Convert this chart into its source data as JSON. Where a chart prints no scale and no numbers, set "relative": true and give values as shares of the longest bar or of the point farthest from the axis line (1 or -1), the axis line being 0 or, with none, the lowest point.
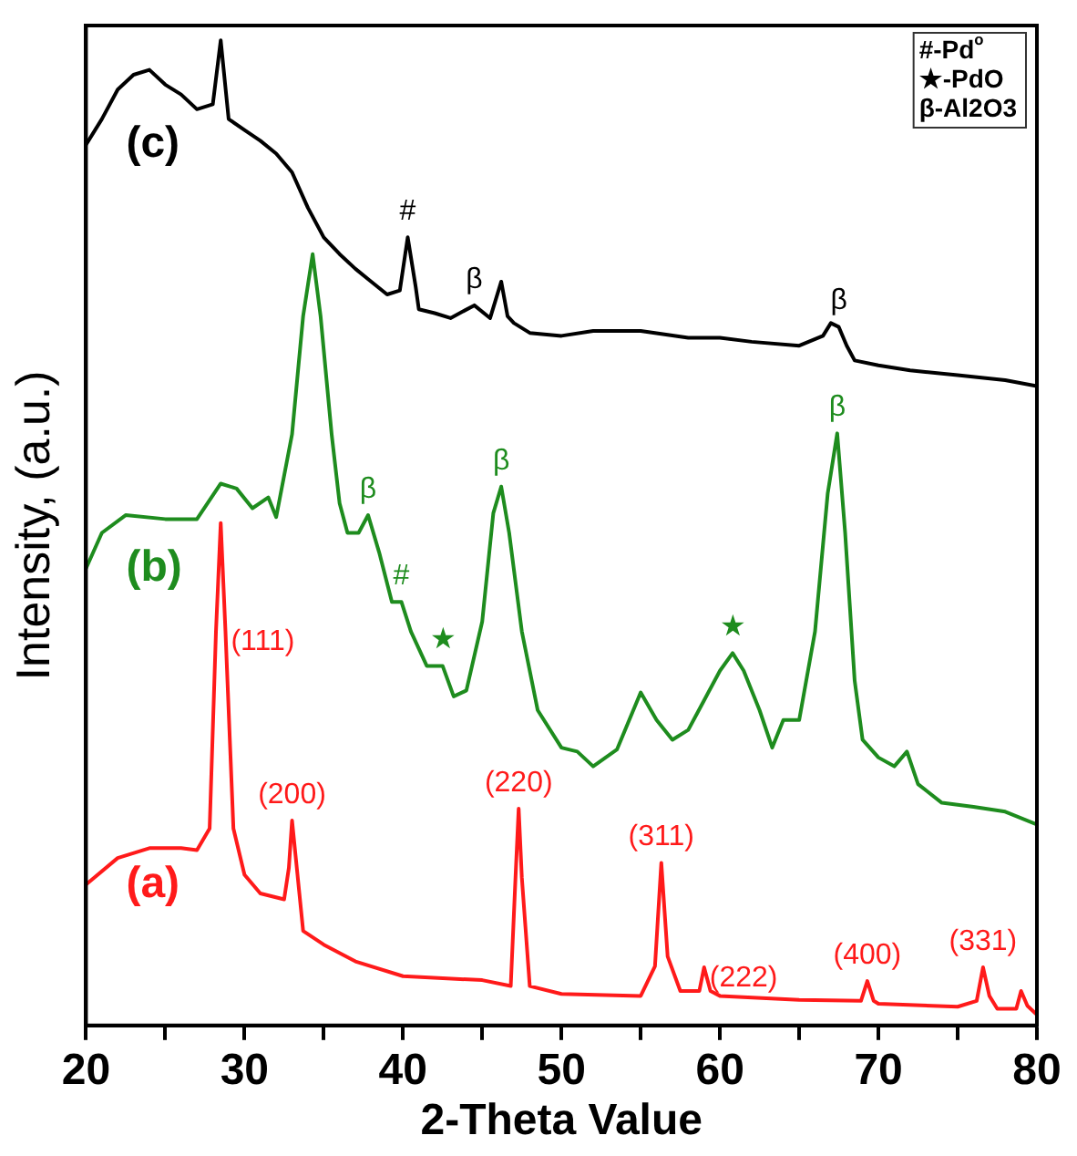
{
  "chart_data": {
    "type": "line",
    "relative": true,
    "xlabel": "2-Theta Value",
    "ylabel": "Intensity, (a.u.)",
    "xlim": [
      20,
      80
    ],
    "xticks": [
      20,
      {
        "value": 25,
        "label": null
      },
      30,
      {
        "value": 35,
        "label": null
      },
      40,
      {
        "value": 45,
        "label": null
      },
      50,
      {
        "value": 55,
        "label": null
      },
      60,
      {
        "value": 65,
        "label": null
      },
      70,
      {
        "value": 75,
        "label": null
      },
      80
    ],
    "grid": false,
    "legend": false,
    "marker": "none",
    "line_style": "solid",
    "series": [
      {
        "name": "(a)",
        "color": "#ff1a1a",
        "x": [
          20,
          22,
          24,
          26,
          27,
          27.8,
          28.2,
          28.5,
          28.8,
          29.3,
          30,
          31,
          32.5,
          32.8,
          33,
          33.3,
          33.7,
          35,
          37,
          40,
          45,
          46.8,
          47.1,
          47.3,
          47.5,
          48,
          50,
          55,
          55.9,
          56.3,
          56.7,
          57.5,
          58.7,
          59,
          59.4,
          60,
          65,
          68.9,
          69.3,
          69.7,
          70,
          75,
          76.2,
          76.6,
          77,
          77.5,
          78.7,
          79,
          79.4,
          80
        ],
        "values": [
          0.143,
          0.17,
          0.18,
          0.18,
          0.178,
          0.2,
          0.4,
          0.51,
          0.4,
          0.2,
          0.153,
          0.134,
          0.128,
          0.16,
          0.208,
          0.16,
          0.096,
          0.082,
          0.065,
          0.05,
          0.046,
          0.04,
          0.15,
          0.22,
          0.15,
          0.04,
          0.032,
          0.03,
          0.06,
          0.165,
          0.07,
          0.035,
          0.035,
          0.059,
          0.035,
          0.03,
          0.026,
          0.025,
          0.045,
          0.025,
          0.022,
          0.019,
          0.025,
          0.059,
          0.03,
          0.017,
          0.017,
          0.035,
          0.02,
          0.011
        ]
      },
      {
        "name": "(b)",
        "color": "#1e8c1e",
        "x": [
          20,
          21,
          22.5,
          25,
          27,
          28.5,
          29.5,
          30.5,
          31.5,
          32,
          33,
          33.7,
          34.3,
          34.8,
          35.5,
          36,
          36.5,
          37.2,
          37.8,
          38.5,
          39.3,
          39.9,
          40.5,
          41.5,
          42.5,
          43.2,
          44,
          45,
          45.7,
          46.2,
          46.7,
          47.5,
          48.5,
          50,
          51,
          52,
          53.5,
          55,
          56,
          57,
          58,
          59,
          60,
          60.8,
          61.5,
          62.5,
          63.3,
          64,
          65,
          66,
          66.8,
          67.4,
          67.9,
          68.5,
          69,
          70,
          71,
          71.8,
          72.5,
          74,
          76,
          78,
          80
        ],
        "values": [
          0.464,
          0.5,
          0.518,
          0.514,
          0.514,
          0.55,
          0.545,
          0.525,
          0.536,
          0.516,
          0.6,
          0.72,
          0.783,
          0.72,
          0.6,
          0.53,
          0.5,
          0.5,
          0.518,
          0.48,
          0.43,
          0.43,
          0.4,
          0.365,
          0.365,
          0.334,
          0.34,
          0.41,
          0.52,
          0.547,
          0.5,
          0.4,
          0.32,
          0.282,
          0.278,
          0.263,
          0.28,
          0.338,
          0.31,
          0.29,
          0.3,
          0.33,
          0.36,
          0.378,
          0.36,
          0.32,
          0.282,
          0.31,
          0.31,
          0.4,
          0.54,
          0.601,
          0.5,
          0.35,
          0.29,
          0.272,
          0.263,
          0.278,
          0.245,
          0.226,
          0.222,
          0.217,
          0.204
        ]
      },
      {
        "name": "(c)",
        "color": "#000000",
        "x": [
          20,
          21,
          22,
          23,
          24,
          25,
          26,
          27,
          28,
          28.5,
          29,
          30,
          31,
          32,
          33,
          34,
          35,
          36,
          37,
          38,
          39,
          39.8,
          40.3,
          40.8,
          41,
          42,
          43,
          44.5,
          45.5,
          46.2,
          46.6,
          47,
          48,
          50,
          52,
          55,
          58,
          60,
          62,
          65,
          66.5,
          67,
          67.5,
          68,
          68.5,
          70,
          72,
          75,
          78,
          80
        ],
        "values": [
          0.894,
          0.92,
          0.95,
          0.965,
          0.97,
          0.955,
          0.945,
          0.93,
          0.935,
          1,
          0.92,
          0.909,
          0.898,
          0.885,
          0.866,
          0.83,
          0.8,
          0.783,
          0.768,
          0.755,
          0.742,
          0.746,
          0.8,
          0.75,
          0.727,
          0.723,
          0.718,
          0.731,
          0.718,
          0.755,
          0.72,
          0.713,
          0.703,
          0.7,
          0.705,
          0.705,
          0.698,
          0.698,
          0.694,
          0.69,
          0.7,
          0.713,
          0.709,
          0.69,
          0.675,
          0.67,
          0.665,
          0.66,
          0.655,
          0.649
        ]
      }
    ],
    "annotations": [
      {
        "text": "(111)",
        "x": 28.8,
        "y": 0.4
      },
      {
        "text": "(200)",
        "x": 33,
        "y": 0.208
      },
      {
        "text": "(220)",
        "x": 47.3,
        "y": 0.22
      },
      {
        "text": "(311)",
        "x": 56.3,
        "y": 0.165
      },
      {
        "text": "(222)",
        "x": 59,
        "y": 0.059
      },
      {
        "text": "(400)",
        "x": 69.3,
        "y": 0.045
      },
      {
        "text": "(331)",
        "x": 76.6,
        "y": 0.059
      },
      {
        "text": "β",
        "x": 37.8,
        "y": 0.518
      },
      {
        "text": "#",
        "x": 39.9,
        "y": 0.43
      },
      {
        "text": "★",
        "x": 42.5,
        "y": 0.365
      },
      {
        "text": "β",
        "x": 46.2,
        "y": 0.547
      },
      {
        "text": "★",
        "x": 60.8,
        "y": 0.378
      },
      {
        "text": "β",
        "x": 67.4,
        "y": 0.601
      },
      {
        "text": "#",
        "x": 40.3,
        "y": 0.8
      },
      {
        "text": "β",
        "x": 44.5,
        "y": 0.731
      },
      {
        "text": "β",
        "x": 67.5,
        "y": 0.709
      },
      "#-Pd$^{o}$",
      "★-PdO",
      "β-Al2O3"
    ]
  }
}
